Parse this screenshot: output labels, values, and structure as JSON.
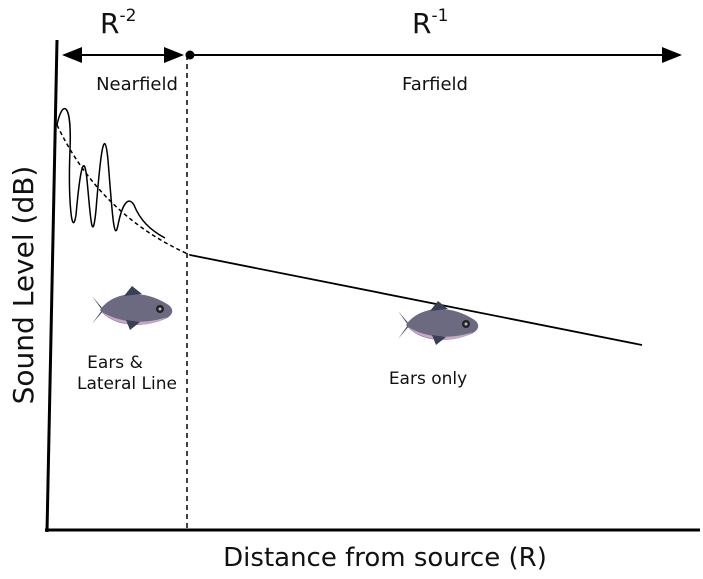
{
  "regions": [
    {
      "base": "R",
      "exponent": "-2",
      "label": "Nearfield",
      "fish_label": [
        "Ears &",
        "Lateral Line"
      ]
    },
    {
      "base": "R",
      "exponent": "-1",
      "label": "Farfield",
      "fish_label": [
        "Ears only"
      ]
    }
  ],
  "axes": {
    "y_label": "Sound Level (dB)",
    "x_label": "Distance from source (R)"
  }
}
